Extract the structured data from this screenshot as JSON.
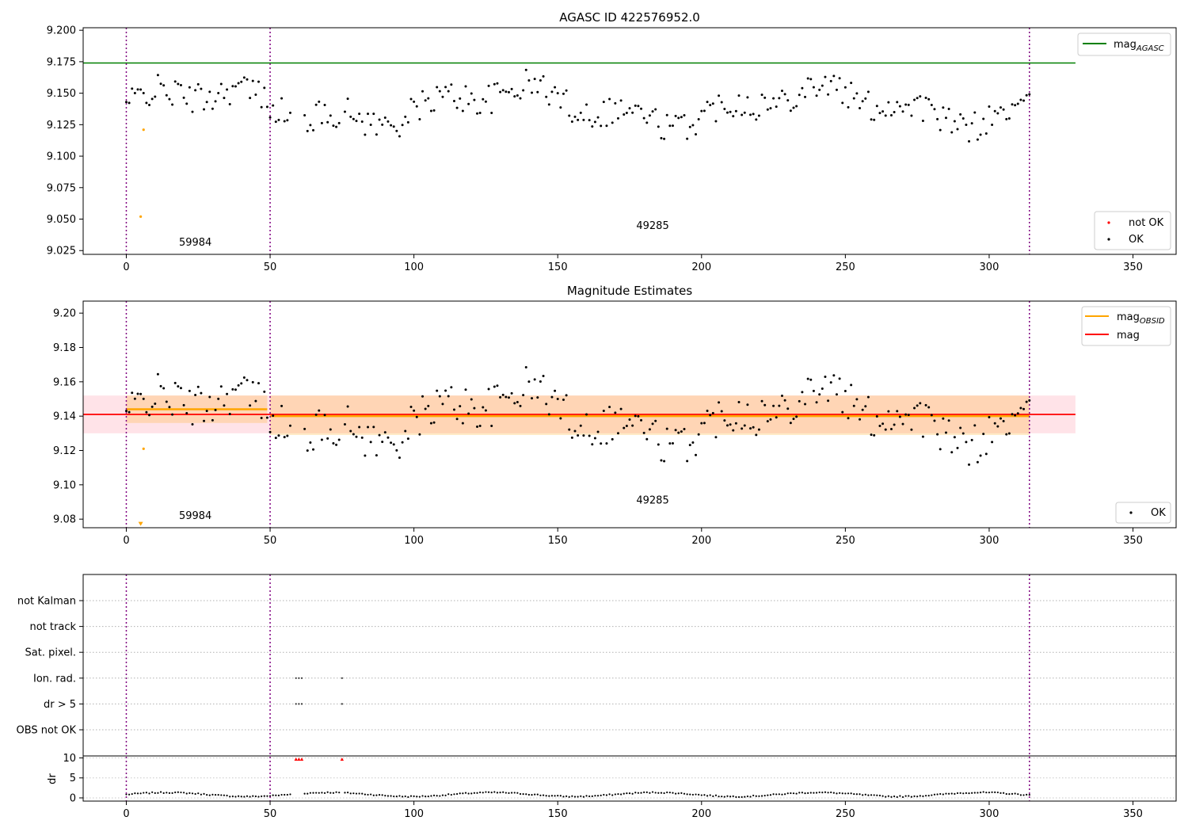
{
  "chart_data": [
    {
      "type": "scatter",
      "title": "AGASC ID 422576952.0",
      "xlim": [
        -15,
        365
      ],
      "ylim": [
        9.022,
        9.202
      ],
      "xticks": [
        0,
        50,
        100,
        150,
        200,
        250,
        300,
        350
      ],
      "yticks": [
        9.025,
        9.05,
        9.075,
        9.1,
        9.125,
        9.15,
        9.175,
        9.2
      ],
      "ytick_labels": [
        "9.025",
        "9.050",
        "9.075",
        "9.100",
        "9.125",
        "9.150",
        "9.175",
        "9.200"
      ],
      "obs_boundaries": [
        0,
        50,
        314
      ],
      "obsid_labels": [
        {
          "text": "59984",
          "x": 24,
          "y": 9.029
        },
        {
          "text": "49285",
          "x": 183,
          "y": 9.042
        }
      ],
      "mag_agasc": 9.174,
      "mag_agasc_xrange": [
        -15,
        330
      ],
      "outliers": [
        {
          "x": 6,
          "y": 9.121
        },
        {
          "x": 5,
          "y": 9.052
        }
      ],
      "legend_lines": [
        {
          "label": "mag",
          "sub": "AGASC",
          "color": "#008000"
        }
      ],
      "legend_points": [
        {
          "label": "not OK",
          "color": "#ff0000"
        },
        {
          "label": "OK",
          "color": "#000000"
        }
      ],
      "series": [
        {
          "name": "OK",
          "color": "#000000"
        }
      ]
    },
    {
      "type": "scatter",
      "title": "Magnitude Estimates",
      "xlim": [
        -15,
        365
      ],
      "ylim": [
        9.075,
        9.207
      ],
      "xticks": [
        0,
        50,
        100,
        150,
        200,
        250,
        300,
        350
      ],
      "yticks": [
        9.08,
        9.1,
        9.12,
        9.14,
        9.16,
        9.18,
        9.2
      ],
      "ytick_labels": [
        "9.08",
        "9.10",
        "9.12",
        "9.14",
        "9.16",
        "9.18",
        "9.20"
      ],
      "obs_boundaries": [
        0,
        50,
        314
      ],
      "obsid_labels": [
        {
          "text": "59984",
          "x": 24,
          "y": 9.08
        },
        {
          "text": "49285",
          "x": 183,
          "y": 9.089
        }
      ],
      "mag": 9.141,
      "mag_band": [
        9.13,
        9.152
      ],
      "mag_xrange": [
        -15,
        330
      ],
      "mag_obsid_segments": [
        {
          "x": [
            0,
            49
          ],
          "mag": 9.144,
          "band": [
            9.136,
            9.152
          ]
        },
        {
          "x": [
            50,
            314
          ],
          "mag": 9.14,
          "band": [
            9.129,
            9.152
          ]
        }
      ],
      "outliers": [
        {
          "x": 6,
          "y": 9.121
        },
        {
          "x": 5,
          "y": 9.077
        }
      ],
      "legend_lines": [
        {
          "label": "mag",
          "sub": "OBSID",
          "color": "#ffa500"
        },
        {
          "label": "mag",
          "sub": "",
          "color": "#ff0000"
        }
      ],
      "legend_points": [
        {
          "label": "OK",
          "color": "#000000"
        }
      ],
      "series": [
        {
          "name": "OK",
          "color": "#000000"
        }
      ]
    },
    {
      "type": "scatter",
      "title": "",
      "xlim": [
        -15,
        365
      ],
      "xticks": [
        0,
        50,
        100,
        150,
        200,
        250,
        300,
        350
      ],
      "obs_boundaries": [
        0,
        50,
        314
      ],
      "flag_rows": [
        "not Kalman",
        "not track",
        "Sat. pixel.",
        "Ion. rad.",
        "dr > 5",
        "OBS not OK"
      ],
      "flag_points": [
        {
          "row": "Ion. rad.",
          "x": [
            59,
            60,
            61,
            75
          ]
        },
        {
          "row": "dr > 5",
          "x": [
            59,
            60,
            61,
            75
          ]
        }
      ],
      "dr_ylabel": "dr",
      "dr_ylim": [
        -0.8,
        10.5
      ],
      "dr_yticks": [
        0,
        5,
        10
      ],
      "dr_outliers": [
        {
          "x": 59,
          "y": 9.7
        },
        {
          "x": 60,
          "y": 9.7
        },
        {
          "x": 61,
          "y": 9.7
        },
        {
          "x": 75,
          "y": 9.7
        }
      ]
    }
  ]
}
